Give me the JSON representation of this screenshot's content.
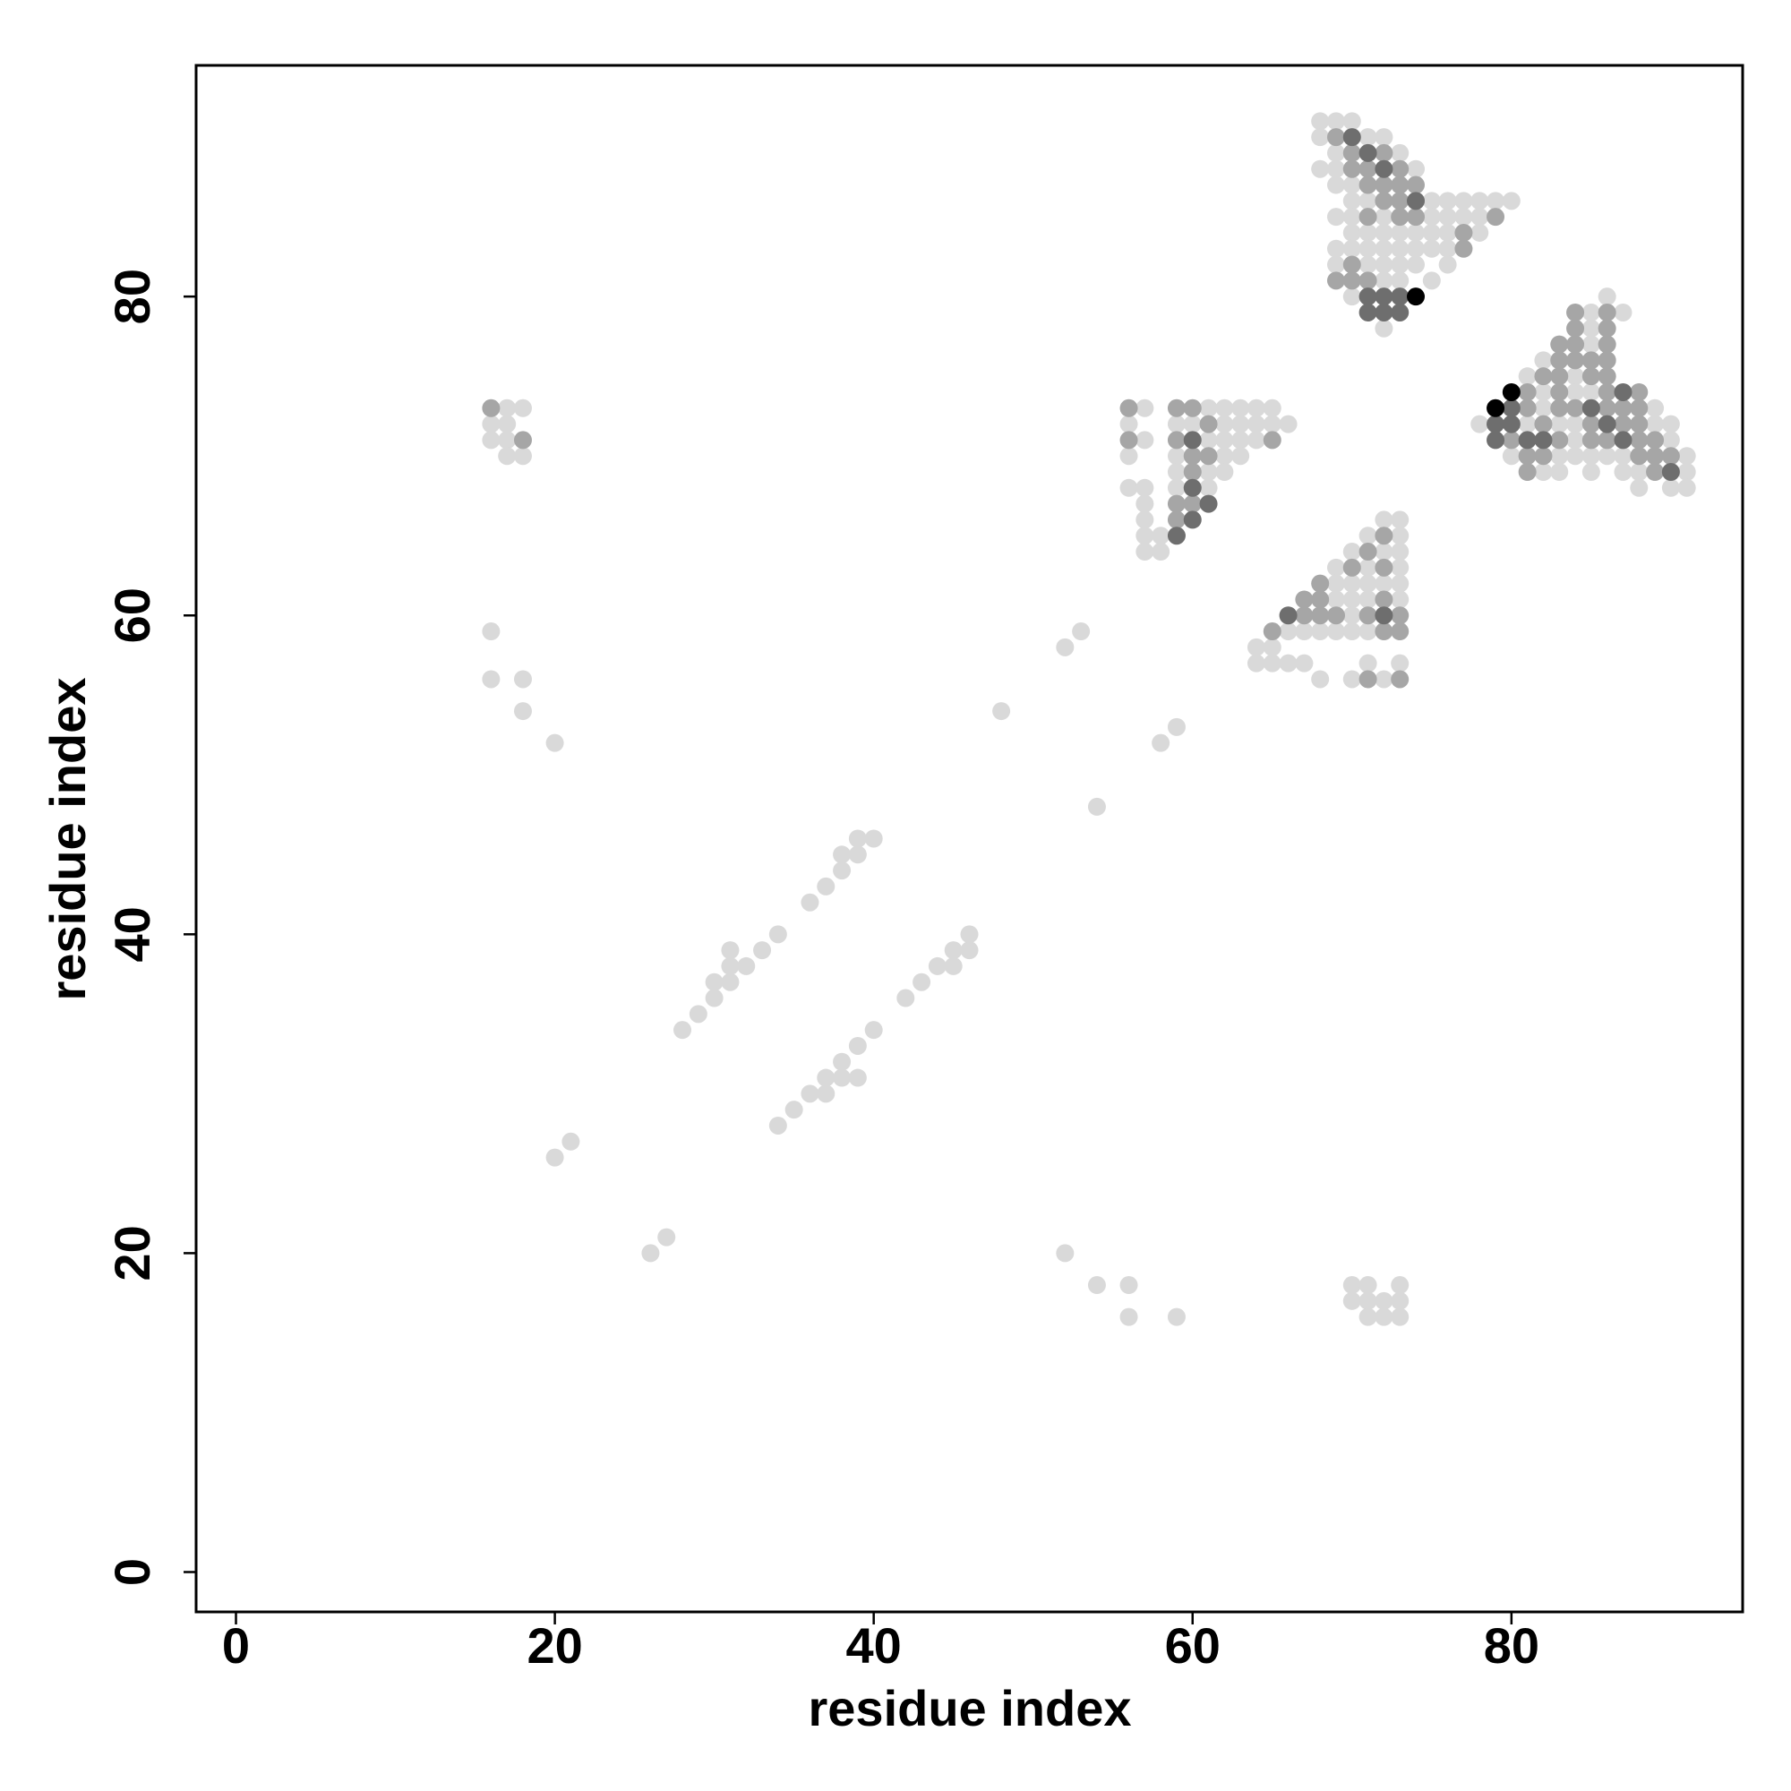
{
  "chart_data": {
    "type": "scatter",
    "x_label": "residue index",
    "y_label": "residue index",
    "xlim": [
      -2.5,
      94.5
    ],
    "ylim": [
      -2.5,
      94.5
    ],
    "xticks": [
      0,
      20,
      40,
      60,
      80
    ],
    "yticks": [
      0,
      20,
      40,
      60,
      80
    ],
    "grid": false,
    "series": [
      {
        "color": "#d9d9d9",
        "x": [
          16,
          17,
          17,
          18,
          16,
          17,
          17,
          18,
          16,
          16,
          18,
          18,
          20,
          20,
          21,
          26,
          27,
          28,
          29,
          30,
          30,
          31,
          31,
          31,
          32,
          33,
          34,
          36,
          37,
          38,
          38,
          39,
          39,
          40,
          34,
          35,
          36,
          37,
          37,
          38,
          38,
          39,
          39,
          40,
          42,
          43,
          44,
          45,
          45,
          46,
          46,
          48,
          52,
          53,
          54,
          58,
          59,
          52,
          54,
          56,
          56,
          59,
          70,
          71,
          73,
          70,
          71,
          72,
          73,
          71,
          72,
          73,
          57,
          61,
          62,
          63,
          64,
          65,
          56,
          59,
          60,
          62,
          63,
          64,
          65,
          66,
          57,
          61,
          62,
          63,
          64,
          56,
          59,
          62,
          63,
          59,
          61,
          62,
          56,
          57,
          59,
          61,
          57,
          57,
          57,
          58,
          57,
          58,
          72,
          73,
          71,
          73,
          70,
          72,
          73,
          69,
          71,
          73,
          69,
          70,
          71,
          72,
          73,
          69,
          70,
          71,
          73,
          70,
          66,
          67,
          68,
          69,
          70,
          71,
          64,
          65,
          64,
          65,
          66,
          67,
          71,
          73,
          68,
          70,
          72,
          68,
          69,
          70,
          68,
          71,
          72,
          69,
          73,
          68,
          69,
          74,
          69,
          70,
          70,
          71,
          75,
          76,
          77,
          78,
          79,
          80,
          69,
          70,
          72,
          75,
          76,
          77,
          78,
          70,
          71,
          72,
          73,
          74,
          75,
          76,
          78,
          69,
          70,
          71,
          72,
          73,
          74,
          75,
          76,
          69,
          71,
          72,
          73,
          74,
          76,
          72,
          73,
          75,
          70,
          72,
          86,
          85,
          87,
          85,
          85,
          82,
          81,
          84,
          82,
          84,
          85,
          82,
          89,
          78,
          81,
          83,
          84,
          89,
          90,
          84,
          90,
          80,
          83,
          84,
          85,
          86,
          87,
          91,
          82,
          83,
          85,
          87,
          88,
          91,
          88,
          90,
          91
        ],
        "values": [
          72,
          72,
          73,
          73,
          71,
          71,
          70,
          70,
          59,
          56,
          56,
          54,
          52,
          26,
          27,
          20,
          21,
          34,
          35,
          36,
          37,
          37,
          38,
          39,
          38,
          39,
          40,
          42,
          43,
          44,
          45,
          45,
          46,
          46,
          28,
          29,
          30,
          30,
          31,
          31,
          32,
          31,
          33,
          34,
          36,
          37,
          38,
          38,
          39,
          39,
          40,
          54,
          58,
          59,
          48,
          52,
          53,
          20,
          18,
          18,
          16,
          16,
          18,
          18,
          18,
          17,
          17,
          17,
          17,
          16,
          16,
          16,
          73,
          73,
          73,
          73,
          73,
          73,
          72,
          72,
          72,
          72,
          72,
          72,
          72,
          72,
          71,
          71,
          71,
          71,
          71,
          70,
          70,
          70,
          70,
          69,
          69,
          69,
          68,
          68,
          68,
          68,
          67,
          66,
          65,
          65,
          64,
          64,
          66,
          66,
          65,
          65,
          64,
          64,
          64,
          63,
          63,
          63,
          62,
          62,
          62,
          62,
          62,
          61,
          61,
          61,
          61,
          60,
          59,
          59,
          59,
          59,
          59,
          59,
          58,
          58,
          57,
          57,
          57,
          57,
          57,
          57,
          56,
          56,
          56,
          91,
          91,
          91,
          90,
          90,
          90,
          89,
          89,
          88,
          88,
          88,
          87,
          87,
          86,
          86,
          86,
          86,
          86,
          86,
          86,
          86,
          85,
          85,
          85,
          85,
          85,
          85,
          85,
          84,
          84,
          84,
          84,
          84,
          84,
          84,
          84,
          83,
          83,
          83,
          83,
          83,
          83,
          83,
          83,
          82,
          82,
          82,
          82,
          82,
          82,
          81,
          81,
          81,
          80,
          78,
          80,
          79,
          79,
          78,
          77,
          76,
          75,
          75,
          74,
          74,
          74,
          73,
          73,
          72,
          72,
          72,
          72,
          72,
          72,
          71,
          71,
          70,
          70,
          70,
          70,
          70,
          70,
          70,
          69,
          69,
          69,
          69,
          69,
          69,
          68,
          68,
          68
        ]
      },
      {
        "color": "#a6a6a6",
        "x": [
          16,
          18,
          56,
          59,
          60,
          61,
          56,
          59,
          65,
          60,
          61,
          60,
          59,
          60,
          59,
          72,
          71,
          70,
          72,
          68,
          67,
          68,
          72,
          67,
          68,
          69,
          71,
          73,
          65,
          72,
          73,
          71,
          73,
          69,
          70,
          72,
          70,
          71,
          73,
          71,
          72,
          73,
          74,
          72,
          73,
          71,
          73,
          74,
          79,
          77,
          77,
          70,
          69,
          70,
          71,
          84,
          86,
          84,
          86,
          83,
          84,
          86,
          83,
          84,
          85,
          86,
          82,
          83,
          85,
          86,
          81,
          83,
          86,
          88,
          81,
          83,
          84,
          86,
          87,
          88,
          82,
          85,
          87,
          88,
          80,
          83,
          85,
          86,
          88,
          89,
          81,
          82,
          88,
          89,
          90,
          81,
          89
        ],
        "values": [
          73,
          71,
          73,
          73,
          73,
          72,
          71,
          71,
          71,
          70,
          70,
          69,
          67,
          67,
          66,
          65,
          64,
          63,
          63,
          62,
          61,
          61,
          61,
          60,
          60,
          60,
          60,
          60,
          59,
          59,
          59,
          56,
          56,
          90,
          89,
          89,
          88,
          88,
          88,
          87,
          87,
          87,
          87,
          86,
          86,
          85,
          85,
          85,
          85,
          84,
          83,
          82,
          81,
          81,
          81,
          79,
          79,
          78,
          78,
          77,
          77,
          77,
          76,
          76,
          76,
          76,
          75,
          75,
          75,
          75,
          74,
          74,
          74,
          74,
          73,
          73,
          73,
          73,
          73,
          73,
          72,
          72,
          72,
          72,
          71,
          71,
          71,
          71,
          71,
          71,
          70,
          70,
          70,
          70,
          70,
          69,
          69
        ]
      },
      {
        "color": "#6e6e6e",
        "x": [
          60,
          60,
          61,
          60,
          59,
          66,
          72,
          70,
          71,
          72,
          74,
          71,
          72,
          73,
          71,
          72,
          73,
          87,
          80,
          85,
          79,
          80,
          86,
          79,
          81,
          82,
          87,
          90
        ],
        "values": [
          71,
          68,
          67,
          66,
          65,
          60,
          60,
          90,
          89,
          88,
          86,
          80,
          80,
          80,
          79,
          79,
          79,
          74,
          73,
          73,
          72,
          72,
          72,
          71,
          71,
          71,
          71,
          69
        ]
      },
      {
        "color": "#000000",
        "x": [
          74,
          80,
          79
        ],
        "values": [
          80,
          74,
          73
        ]
      }
    ]
  }
}
